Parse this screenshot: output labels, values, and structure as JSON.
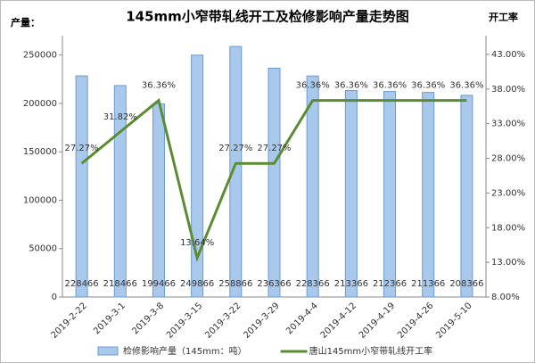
{
  "chart_data": {
    "type": "combo",
    "title": "145mm小窄带轧线开工及检修影响产量走势图",
    "y_label": "产量：",
    "y2_label": "开工率",
    "categories": [
      "2019-2-22",
      "2019-3-1",
      "2019-3-8",
      "2019-3-15",
      "2019-3-22",
      "2019-3-29",
      "2019-4-4",
      "2019-4-12",
      "2019-4-19",
      "2019-4-26",
      "2019-5-10"
    ],
    "series": [
      {
        "name": "检修影响产量（145mm：吨）",
        "type": "bar",
        "color": "#a9c9ec",
        "values": [
          228466,
          218466,
          199466,
          249866,
          258866,
          236366,
          228366,
          213366,
          212366,
          211366,
          208366
        ]
      },
      {
        "name": "唐山145mm小窄带轧线开工率",
        "type": "line",
        "axis": "y2",
        "color": "#5b8c32",
        "values": [
          27.27,
          31.82,
          36.36,
          13.64,
          27.27,
          27.27,
          36.36,
          36.36,
          36.36,
          36.36,
          36.36
        ],
        "value_labels": [
          "27.27%",
          "31.82%",
          "36.36%",
          "13.64%",
          "27.27%",
          "27.27%",
          "36.36%",
          "36.36%",
          "36.36%",
          "36.36%",
          "36.36%"
        ]
      }
    ],
    "ylim": [
      0,
      270000
    ],
    "yticks": [
      0,
      50000,
      100000,
      150000,
      200000,
      250000
    ],
    "y2lim": [
      8,
      45.7
    ],
    "y2ticks": [
      {
        "value": 8,
        "label": "8.00%"
      },
      {
        "value": 13,
        "label": "13.00%"
      },
      {
        "value": 18,
        "label": "18.00%"
      },
      {
        "value": 23,
        "label": "23.00%"
      },
      {
        "value": 28,
        "label": "28.00%"
      },
      {
        "value": 33,
        "label": "33.00%"
      },
      {
        "value": 38,
        "label": "38.00%"
      },
      {
        "value": 43,
        "label": "43.00%"
      }
    ]
  }
}
